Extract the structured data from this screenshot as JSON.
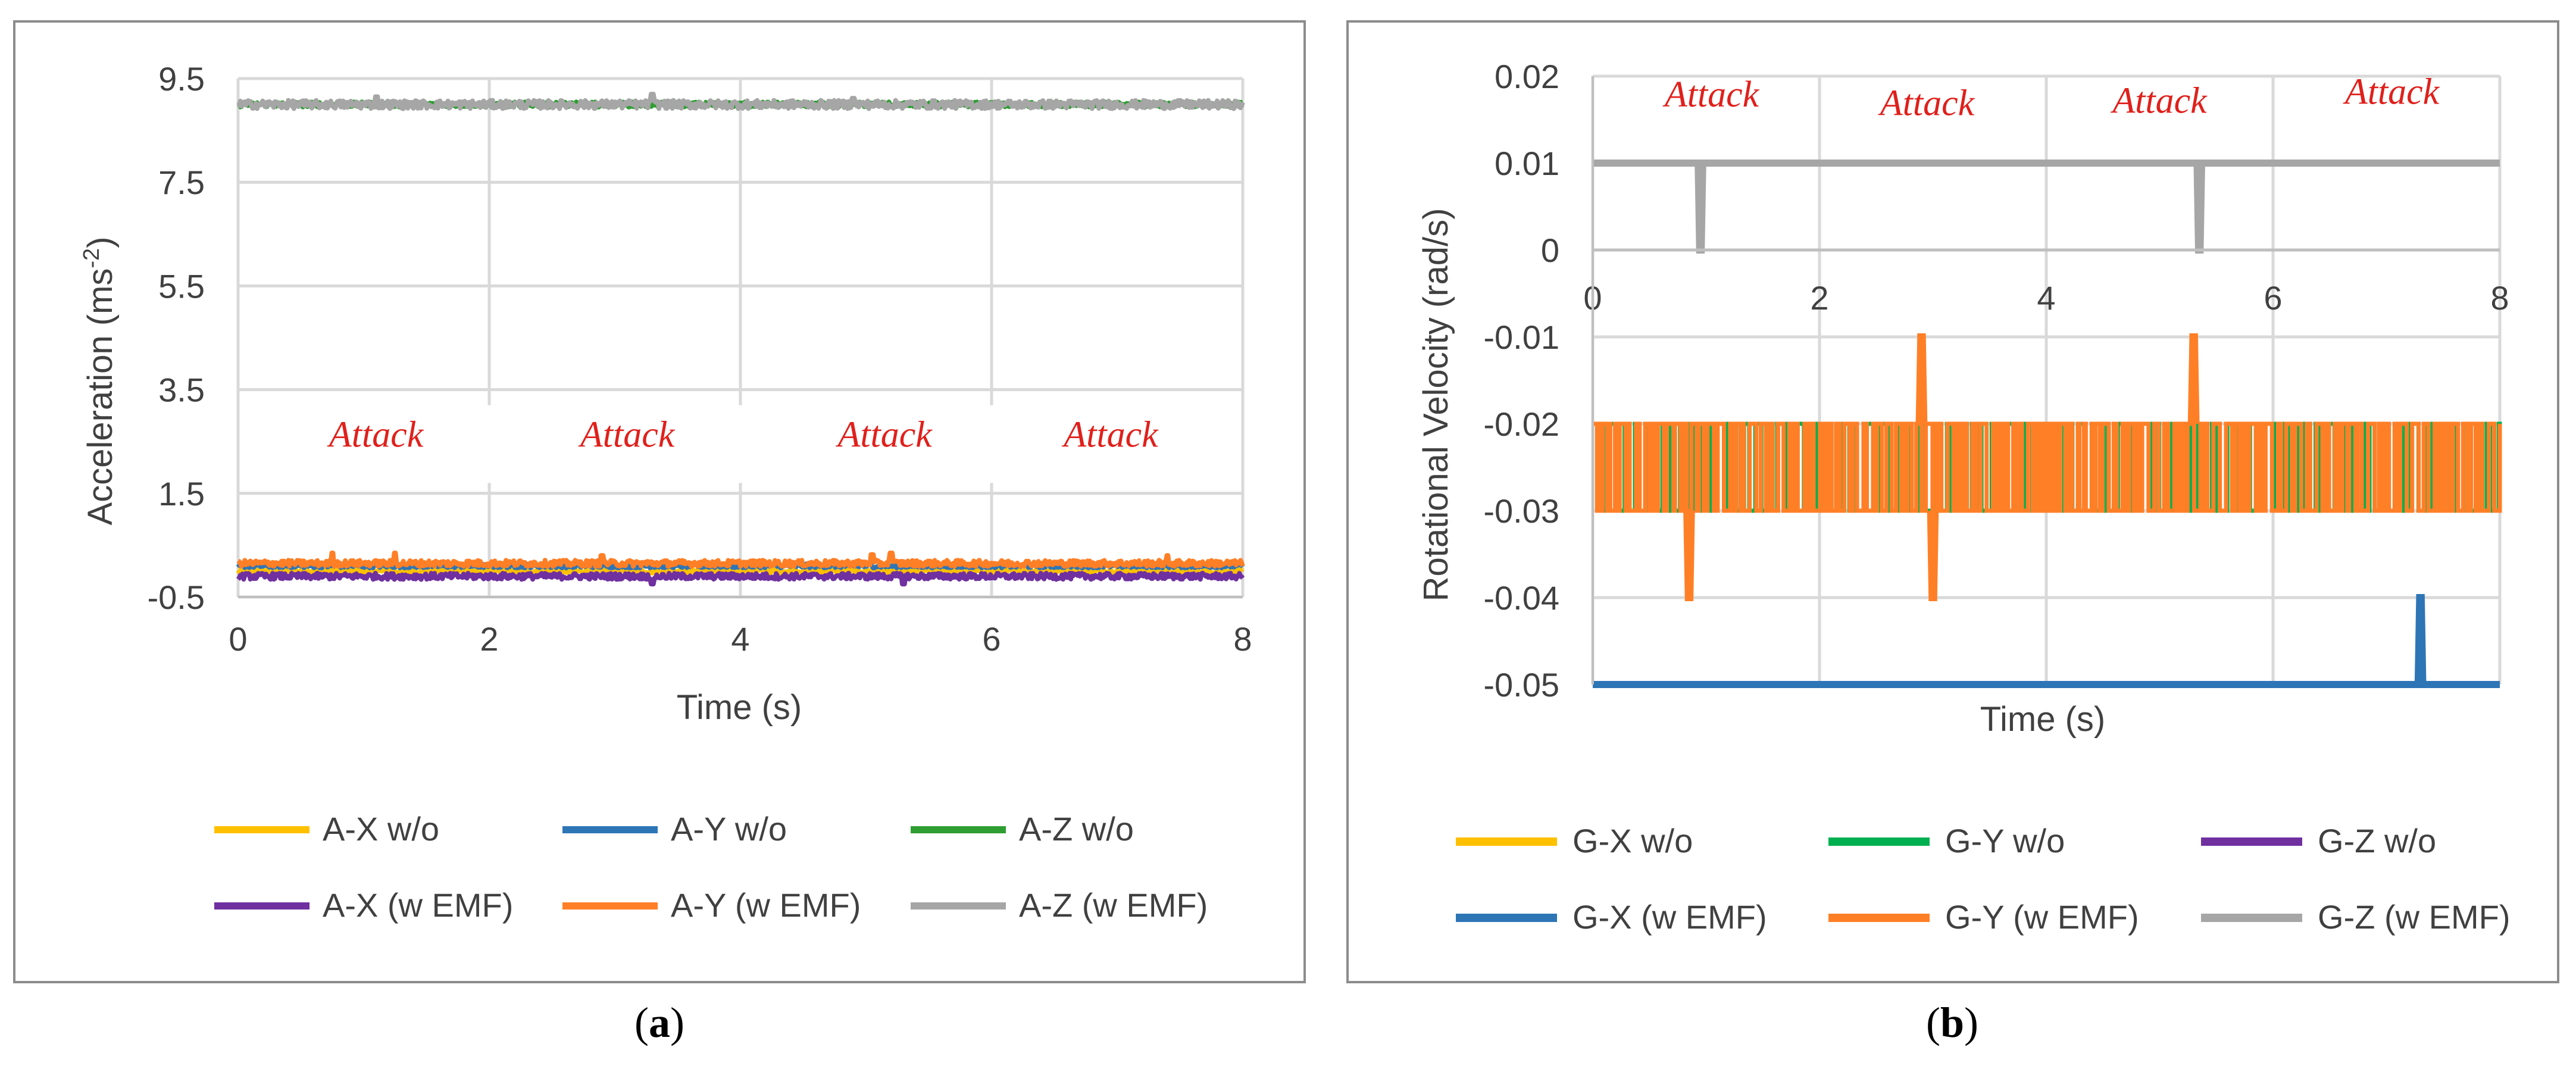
{
  "chart_data": [
    {
      "id": "a",
      "type": "line",
      "caption_label": "a",
      "xlabel": "Time (s)",
      "ylabel": "Acceleration (ms-2)",
      "ylabel_base": "Acceleration (ms",
      "ylabel_sup": "-2",
      "ylabel_close": ")",
      "xlim": [
        0,
        8
      ],
      "ylim": [
        -0.5,
        9.5
      ],
      "xticks": [
        0,
        2,
        4,
        6,
        8
      ],
      "yticks": [
        -0.5,
        1.5,
        3.5,
        5.5,
        7.5,
        9.5
      ],
      "grid": true,
      "legend_position": "bottom",
      "annotations": [
        {
          "text": "Attack",
          "x": 1.1,
          "y": 2.4
        },
        {
          "text": "Attack",
          "x": 3.1,
          "y": 2.4
        },
        {
          "text": "Attack",
          "x": 5.15,
          "y": 2.4
        },
        {
          "text": "Attack",
          "x": 6.95,
          "y": 2.4
        }
      ],
      "series": [
        {
          "name": "A-X w/o",
          "color": "#ffc000",
          "baseline": 0.0,
          "noise": 0.05,
          "spikes": []
        },
        {
          "name": "A-Y w/o",
          "color": "#2e75b6",
          "baseline": 0.1,
          "noise": 0.04,
          "spikes": []
        },
        {
          "name": "A-Z w/o",
          "color": "#2e9e32",
          "baseline": 9.0,
          "noise": 0.05,
          "spikes": []
        },
        {
          "name": "A-X (w EMF)",
          "color": "#7030a0",
          "baseline": -0.1,
          "noise": 0.06,
          "spikes": [
            [
              3.3,
              -0.25
            ],
            [
              5.3,
              -0.25
            ]
          ]
        },
        {
          "name": "A-Y (w EMF)",
          "color": "#ff7f27",
          "baseline": 0.15,
          "noise": 0.06,
          "spikes": [
            [
              0.75,
              0.35
            ],
            [
              1.25,
              0.35
            ],
            [
              2.9,
              0.3
            ],
            [
              5.05,
              0.32
            ],
            [
              5.2,
              0.35
            ],
            [
              7.4,
              0.3
            ]
          ]
        },
        {
          "name": "A-Z (w EMF)",
          "color": "#a6a6a6",
          "baseline": 9.0,
          "noise": 0.08,
          "spikes": [
            [
              1.1,
              9.15
            ],
            [
              3.3,
              9.2
            ],
            [
              4.9,
              9.12
            ]
          ]
        }
      ]
    },
    {
      "id": "b",
      "type": "line",
      "caption_label": "b",
      "xlabel": "Time (s)",
      "ylabel": "Rotational Velocity (rad/s)",
      "xlim": [
        0,
        8
      ],
      "ylim": [
        -0.05,
        0.02
      ],
      "xticks": [
        0,
        2,
        4,
        6,
        8
      ],
      "yticks": [
        -0.05,
        -0.04,
        -0.03,
        -0.02,
        -0.01,
        0,
        0.01,
        0.02
      ],
      "ytick_labels": [
        "-0.05",
        "-0.04",
        "-0.03",
        "-0.02",
        "-0.01",
        "0",
        "0.01",
        "0.02"
      ],
      "x_axis_at_y": 0,
      "grid": true,
      "legend_position": "bottom",
      "annotations": [
        {
          "text": "Attack",
          "x": 1.05,
          "y": 0.0165
        },
        {
          "text": "Attack",
          "x": 2.95,
          "y": 0.0155
        },
        {
          "text": "Attack",
          "x": 5.0,
          "y": 0.0158
        },
        {
          "text": "Attack",
          "x": 7.05,
          "y": 0.0168
        }
      ],
      "series": [
        {
          "name": "G-X w/o",
          "color": "#ffc000",
          "kind": "flat",
          "value": -0.05
        },
        {
          "name": "G-Y w/o",
          "color": "#00b050",
          "kind": "toggle",
          "values": [
            -0.03,
            -0.02
          ]
        },
        {
          "name": "G-Z w/o",
          "color": "#7030a0",
          "kind": "flat",
          "value": 0.01
        },
        {
          "name": "G-X (w EMF)",
          "color": "#2e75b6",
          "kind": "flat_spikes",
          "value": -0.05,
          "spikes": [
            [
              7.3,
              -0.04
            ]
          ]
        },
        {
          "name": "G-Y (w EMF)",
          "color": "#ff7f27",
          "kind": "toggle_spikes",
          "values": [
            -0.03,
            -0.02
          ],
          "spikes": [
            [
              0.85,
              -0.04
            ],
            [
              2.9,
              -0.01
            ],
            [
              3.0,
              -0.04
            ],
            [
              5.3,
              -0.01
            ]
          ]
        },
        {
          "name": "G-Z (w EMF)",
          "color": "#a6a6a6",
          "kind": "flat_spikes",
          "value": 0.01,
          "spikes": [
            [
              0.95,
              0
            ],
            [
              5.35,
              0
            ]
          ]
        }
      ]
    }
  ]
}
